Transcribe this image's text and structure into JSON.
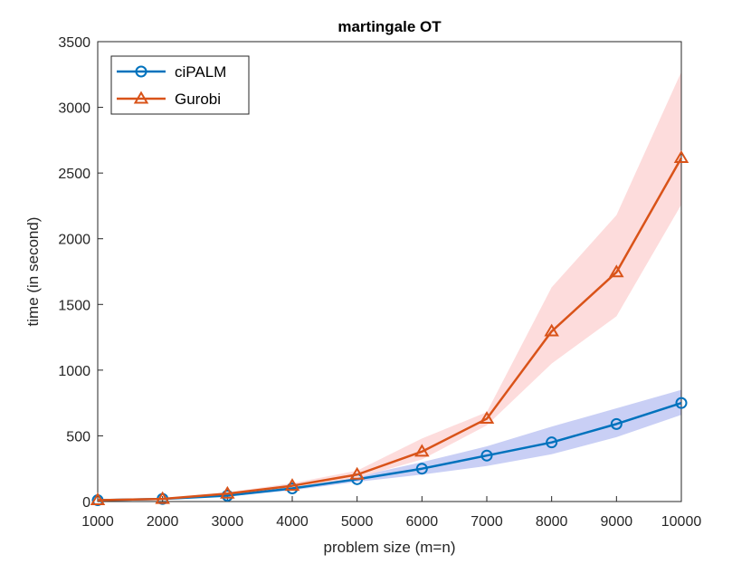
{
  "chart_data": {
    "type": "line",
    "title": "martingale OT",
    "xlabel": "problem size (m=n)",
    "ylabel": "time (in second)",
    "x": [
      1000,
      2000,
      3000,
      4000,
      5000,
      6000,
      7000,
      8000,
      9000,
      10000
    ],
    "xlim": [
      1000,
      10000
    ],
    "ylim": [
      0,
      3500
    ],
    "xticks": [
      "1000",
      "2000",
      "3000",
      "4000",
      "5000",
      "6000",
      "7000",
      "8000",
      "9000",
      "10000"
    ],
    "yticks": [
      "0",
      "500",
      "1000",
      "1500",
      "2000",
      "2500",
      "3000",
      "3500"
    ],
    "grid": false,
    "legend_position": "top-left",
    "series": [
      {
        "name": "ciPALM",
        "color": "#0072BD",
        "band_color": "#c9cff5",
        "marker": "circle",
        "values": [
          10,
          20,
          45,
          100,
          170,
          250,
          350,
          450,
          590,
          750
        ],
        "band_low": [
          8,
          15,
          38,
          85,
          150,
          205,
          270,
          360,
          490,
          660
        ],
        "band_high": [
          12,
          25,
          52,
          115,
          190,
          300,
          420,
          570,
          710,
          850
        ]
      },
      {
        "name": "Gurobi",
        "color": "#D95319",
        "band_color": "#fddcdc",
        "marker": "triangle",
        "values": [
          10,
          20,
          60,
          120,
          205,
          380,
          630,
          1295,
          1745,
          2615
        ],
        "band_low": [
          8,
          15,
          50,
          100,
          180,
          320,
          580,
          1050,
          1410,
          2260
        ],
        "band_high": [
          12,
          25,
          70,
          140,
          235,
          480,
          680,
          1630,
          2180,
          3270
        ]
      }
    ]
  }
}
